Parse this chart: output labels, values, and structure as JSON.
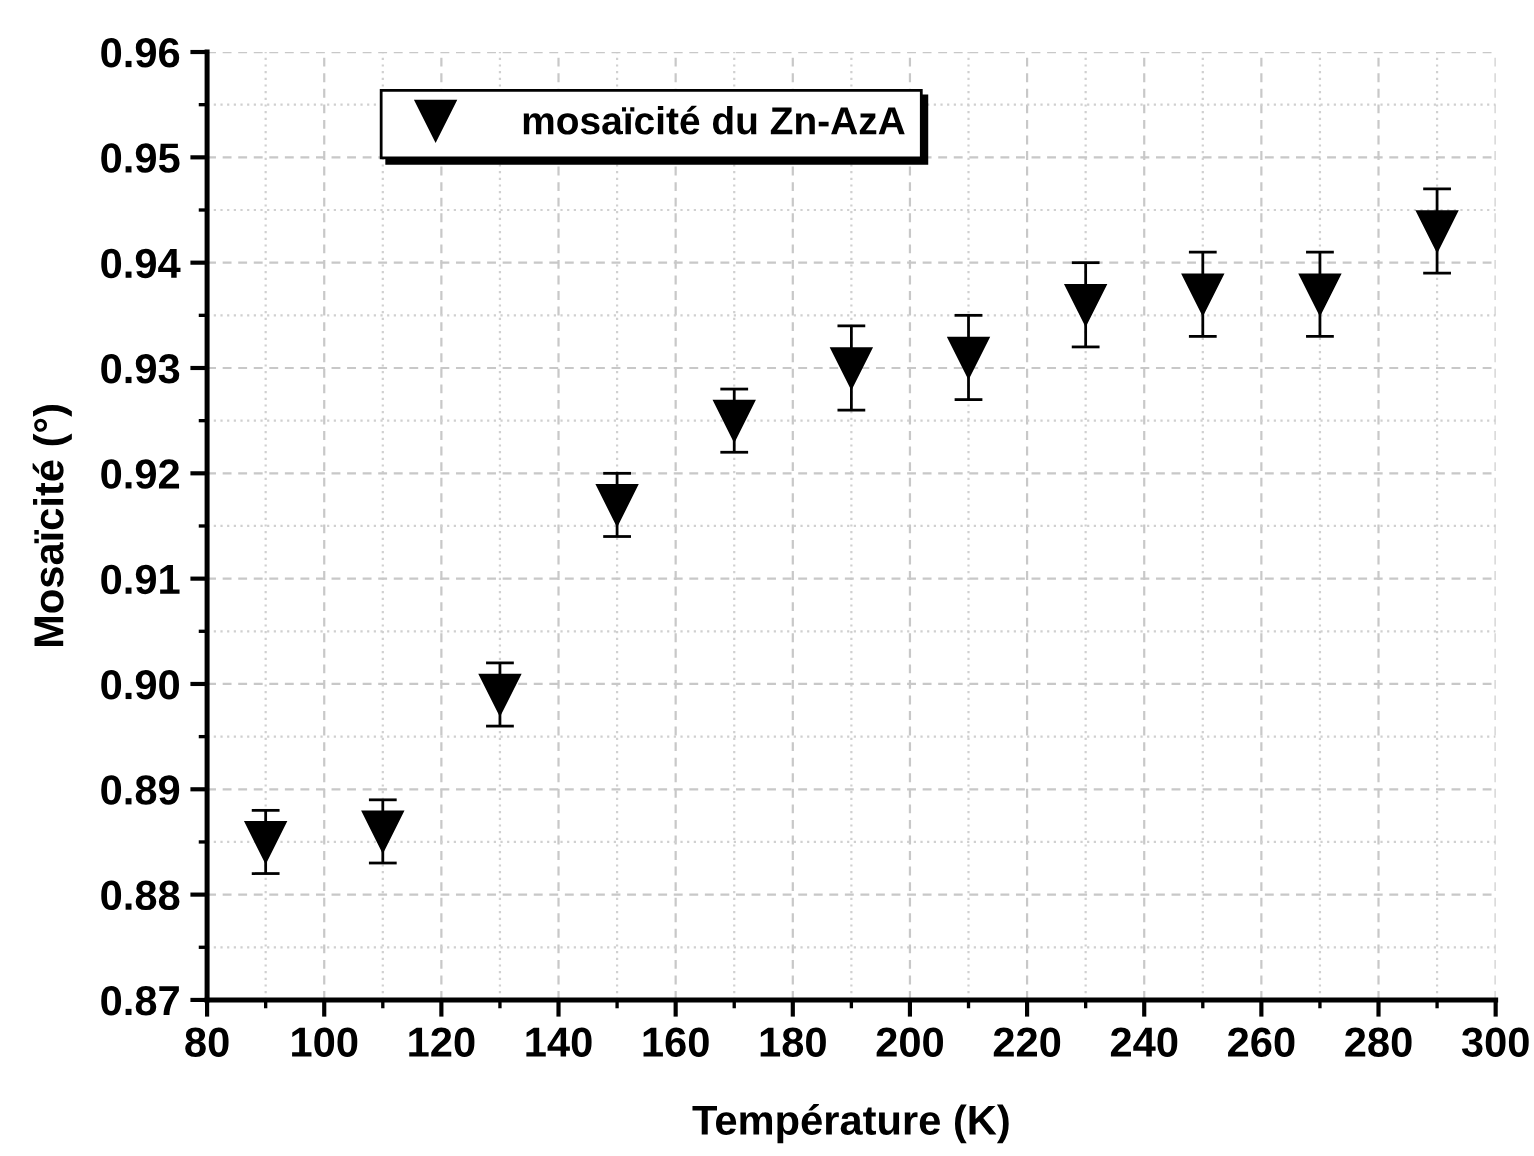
{
  "chart_data": {
    "type": "scatter",
    "xlabel": "Température (K)",
    "ylabel": "Mosaïcité (°)",
    "x": [
      90,
      110,
      130,
      150,
      170,
      190,
      210,
      230,
      250,
      270,
      290
    ],
    "series": [
      {
        "name": "mosaïcité du Zn-AzA",
        "color": "#000000",
        "values": [
          0.885,
          0.886,
          0.899,
          0.917,
          0.925,
          0.93,
          0.931,
          0.936,
          0.937,
          0.937,
          0.943
        ],
        "errors": [
          0.003,
          0.003,
          0.003,
          0.003,
          0.003,
          0.004,
          0.004,
          0.004,
          0.004,
          0.004,
          0.004
        ]
      }
    ],
    "xlim": [
      80,
      300
    ],
    "xticks": [
      80,
      100,
      120,
      140,
      160,
      180,
      200,
      220,
      240,
      260,
      280,
      300
    ],
    "ylim": [
      0.87,
      0.96
    ],
    "yticks": [
      {
        "value": 0.87,
        "label": "0.87"
      },
      {
        "value": 0.88,
        "label": "0.88"
      },
      {
        "value": 0.89,
        "label": "0.89"
      },
      {
        "value": 0.9,
        "label": "0.90"
      },
      {
        "value": 0.91,
        "label": "0.91"
      },
      {
        "value": 0.92,
        "label": "0.92"
      },
      {
        "value": 0.93,
        "label": "0.93"
      },
      {
        "value": 0.94,
        "label": "0.94"
      },
      {
        "value": 0.95,
        "label": "0.95"
      },
      {
        "value": 0.96,
        "label": "0.96"
      }
    ],
    "grid": true,
    "legend": "top left",
    "marker": "triangle"
  }
}
